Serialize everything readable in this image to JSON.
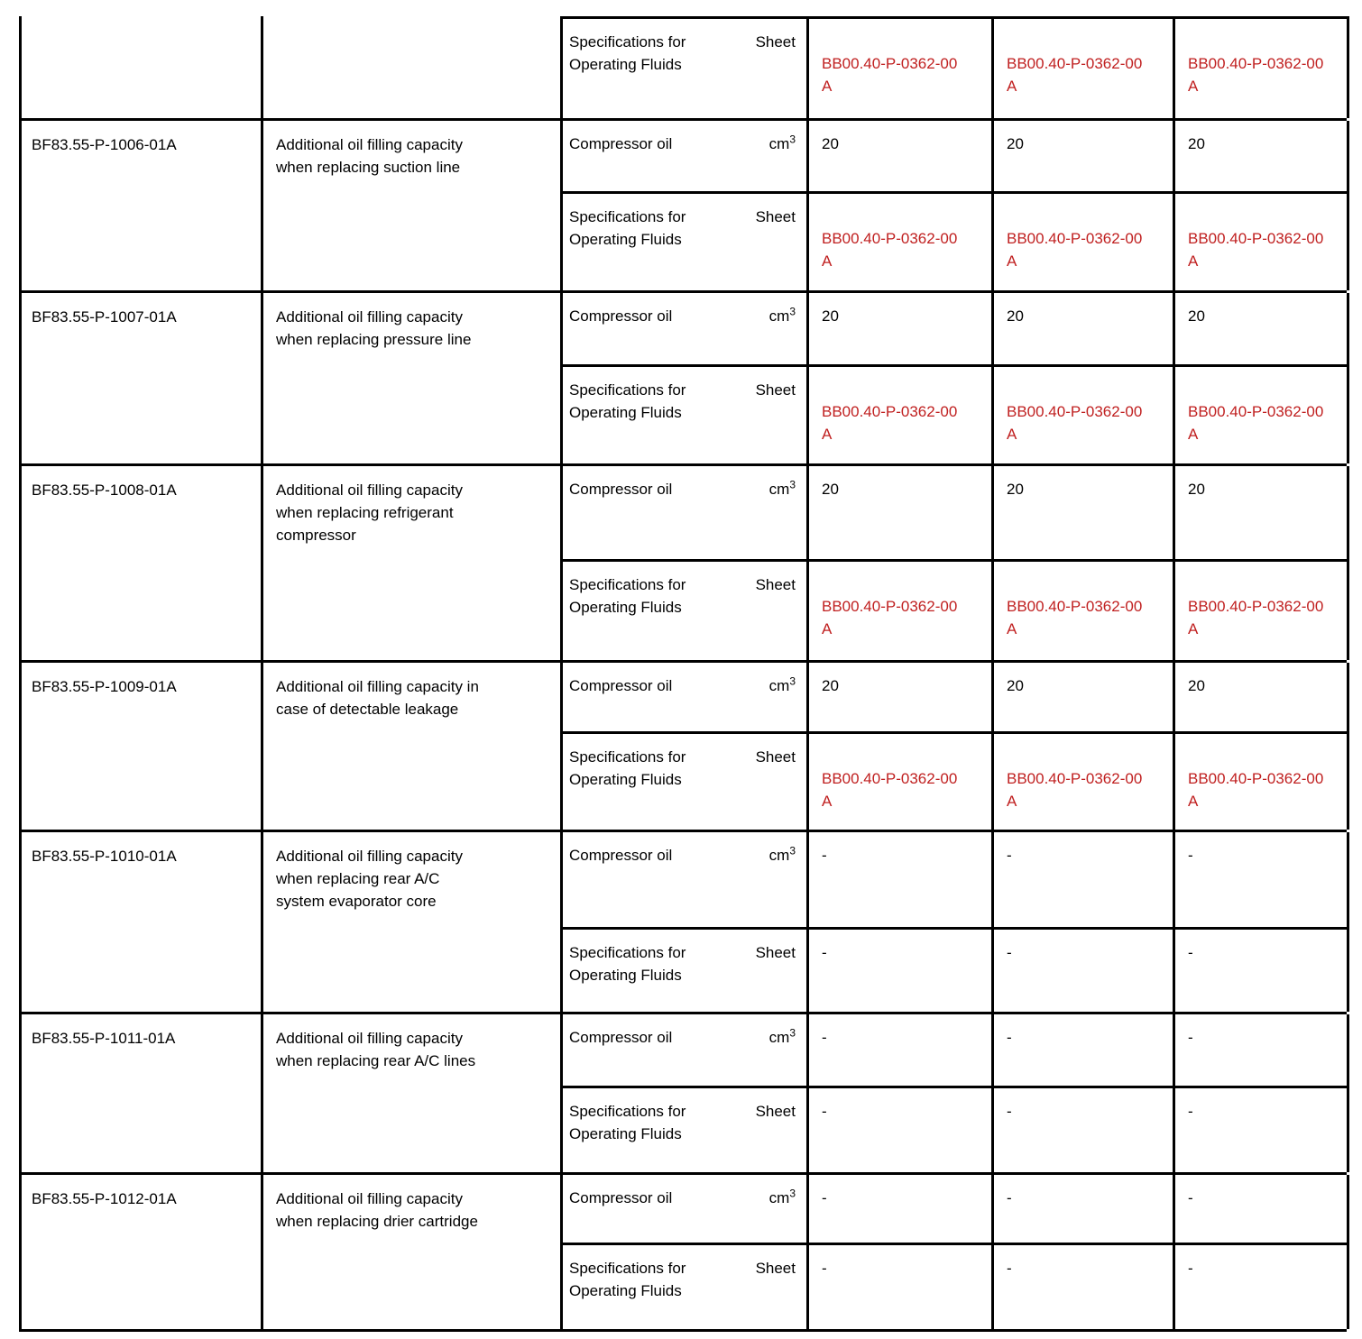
{
  "accent_red": "#C02020",
  "table": {
    "rows": [
      {
        "code": "",
        "description": "",
        "sub_rows": [
          {
            "label": "Specifications for\nOperating Fluids",
            "unit": "Sheet",
            "unit_sup": "",
            "red": true,
            "values": [
              "BB00.40-P-0362-00\nA",
              "BB00.40-P-0362-00\nA",
              "BB00.40-P-0362-00\nA"
            ]
          }
        ]
      },
      {
        "code": "BF83.55-P-1006-01A",
        "description": "Additional oil filling capacity\nwhen replacing suction line",
        "sub_rows": [
          {
            "label": "Compressor oil",
            "unit": "cm",
            "unit_sup": "3",
            "red": false,
            "values": [
              "20",
              "20",
              "20"
            ]
          },
          {
            "label": "Specifications for\nOperating Fluids",
            "unit": "Sheet",
            "unit_sup": "",
            "red": true,
            "values": [
              "BB00.40-P-0362-00\nA",
              "BB00.40-P-0362-00\nA",
              "BB00.40-P-0362-00\nA"
            ]
          }
        ]
      },
      {
        "code": "BF83.55-P-1007-01A",
        "description": "Additional oil filling capacity\nwhen replacing pressure line",
        "sub_rows": [
          {
            "label": "Compressor oil",
            "unit": "cm",
            "unit_sup": "3",
            "red": false,
            "values": [
              "20",
              "20",
              "20"
            ]
          },
          {
            "label": "Specifications for\nOperating Fluids",
            "unit": "Sheet",
            "unit_sup": "",
            "red": true,
            "values": [
              "BB00.40-P-0362-00\nA",
              "BB00.40-P-0362-00\nA",
              "BB00.40-P-0362-00\nA"
            ]
          }
        ]
      },
      {
        "code": "BF83.55-P-1008-01A",
        "description": "Additional oil filling capacity\nwhen replacing refrigerant\ncompressor",
        "sub_rows": [
          {
            "label": "Compressor oil",
            "unit": "cm",
            "unit_sup": "3",
            "red": false,
            "values": [
              "20",
              "20",
              "20"
            ]
          },
          {
            "label": "Specifications for\nOperating Fluids",
            "unit": "Sheet",
            "unit_sup": "",
            "red": true,
            "values": [
              "BB00.40-P-0362-00\nA",
              "BB00.40-P-0362-00\nA",
              "BB00.40-P-0362-00\nA"
            ]
          }
        ]
      },
      {
        "code": "BF83.55-P-1009-01A",
        "description": "Additional oil filling capacity in\ncase of detectable leakage",
        "sub_rows": [
          {
            "label": "Compressor oil",
            "unit": "cm",
            "unit_sup": "3",
            "red": false,
            "values": [
              "20",
              "20",
              "20"
            ]
          },
          {
            "label": "Specifications for\nOperating Fluids",
            "unit": "Sheet",
            "unit_sup": "",
            "red": true,
            "values": [
              "BB00.40-P-0362-00\nA",
              "BB00.40-P-0362-00\nA",
              "BB00.40-P-0362-00\nA"
            ]
          }
        ]
      },
      {
        "code": "BF83.55-P-1010-01A",
        "description": "Additional oil filling capacity\nwhen replacing rear A/C\nsystem evaporator core",
        "sub_rows": [
          {
            "label": "Compressor oil",
            "unit": "cm",
            "unit_sup": "3",
            "red": false,
            "values": [
              "-",
              "-",
              "-"
            ]
          },
          {
            "label": "Specifications for\nOperating Fluids",
            "unit": "Sheet",
            "unit_sup": "",
            "red": false,
            "values": [
              "-",
              "-",
              "-"
            ]
          }
        ]
      },
      {
        "code": "BF83.55-P-1011-01A",
        "description": "Additional oil filling capacity\nwhen replacing rear A/C lines",
        "sub_rows": [
          {
            "label": "Compressor oil",
            "unit": "cm",
            "unit_sup": "3",
            "red": false,
            "values": [
              "-",
              "-",
              "-"
            ]
          },
          {
            "label": "Specifications for\nOperating Fluids",
            "unit": "Sheet",
            "unit_sup": "",
            "red": false,
            "values": [
              "-",
              "-",
              "-"
            ]
          }
        ]
      },
      {
        "code": "BF83.55-P-1012-01A",
        "description": "Additional oil filling capacity\nwhen replacing drier cartridge",
        "sub_rows": [
          {
            "label": "Compressor oil",
            "unit": "cm",
            "unit_sup": "3",
            "red": false,
            "values": [
              "-",
              "-",
              "-"
            ]
          },
          {
            "label": "Specifications for\nOperating Fluids",
            "unit": "Sheet",
            "unit_sup": "",
            "red": false,
            "values": [
              "-",
              "-",
              "-"
            ]
          }
        ]
      }
    ]
  }
}
